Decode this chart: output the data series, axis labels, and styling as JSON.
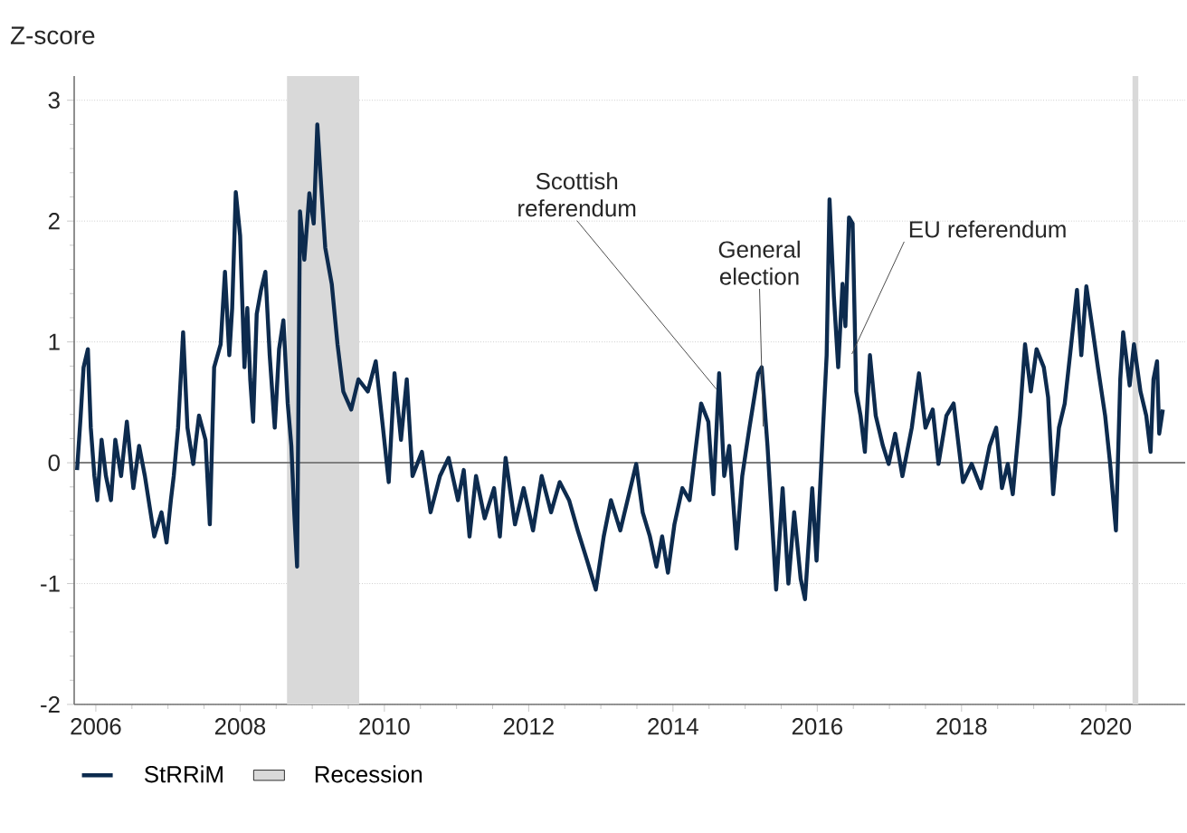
{
  "chart_data": {
    "type": "line",
    "ylabel": "Z-score",
    "x": [
      2005.74,
      2005.79,
      2005.83,
      2005.89,
      2005.93,
      2005.98,
      2006.02,
      2006.08,
      2006.14,
      2006.21,
      2006.27,
      2006.35,
      2006.43,
      2006.52,
      2006.6,
      2006.68,
      2006.81,
      2006.91,
      2006.98,
      2007.04,
      2007.08,
      2007.14,
      2007.21,
      2007.27,
      2007.35,
      2007.43,
      2007.52,
      2007.58,
      2007.64,
      2007.73,
      2007.79,
      2007.85,
      2007.89,
      2007.94,
      2008.0,
      2008.06,
      2008.1,
      2008.14,
      2008.18,
      2008.23,
      2008.29,
      2008.35,
      2008.41,
      2008.48,
      2008.54,
      2008.6,
      2008.66,
      2008.71,
      2008.75,
      2008.79,
      2008.83,
      2008.89,
      2008.96,
      2009.02,
      2009.07,
      2009.13,
      2009.18,
      2009.27,
      2009.35,
      2009.43,
      2009.54,
      2009.64,
      2009.77,
      2009.88,
      2009.98,
      2010.06,
      2010.14,
      2010.23,
      2010.31,
      2010.39,
      2010.52,
      2010.64,
      2010.77,
      2010.89,
      2011.02,
      2011.1,
      2011.18,
      2011.27,
      2011.39,
      2011.52,
      2011.6,
      2011.68,
      2011.81,
      2011.93,
      2012.06,
      2012.18,
      2012.31,
      2012.43,
      2012.56,
      2012.68,
      2012.81,
      2012.93,
      2013.04,
      2013.14,
      2013.27,
      2013.39,
      2013.49,
      2013.58,
      2013.68,
      2013.77,
      2013.85,
      2013.93,
      2014.02,
      2014.13,
      2014.23,
      2014.31,
      2014.39,
      2014.49,
      2014.56,
      2014.64,
      2014.71,
      2014.78,
      2014.88,
      2014.96,
      2015.06,
      2015.18,
      2015.23,
      2015.31,
      2015.43,
      2015.52,
      2015.6,
      2015.68,
      2015.77,
      2015.83,
      2015.93,
      2015.99,
      2016.08,
      2016.13,
      2016.17,
      2016.23,
      2016.29,
      2016.35,
      2016.39,
      2016.44,
      2016.49,
      2016.54,
      2016.6,
      2016.66,
      2016.73,
      2016.81,
      2016.91,
      2016.99,
      2017.08,
      2017.18,
      2017.31,
      2017.41,
      2017.5,
      2017.6,
      2017.68,
      2017.79,
      2017.89,
      2018.02,
      2018.14,
      2018.27,
      2018.39,
      2018.48,
      2018.56,
      2018.64,
      2018.71,
      2018.81,
      2018.88,
      2018.96,
      2019.04,
      2019.14,
      2019.2,
      2019.27,
      2019.35,
      2019.43,
      2019.52,
      2019.6,
      2019.66,
      2019.73,
      2019.81,
      2019.89,
      2019.99,
      2020.06,
      2020.14,
      2020.2,
      2020.24,
      2020.33,
      2020.39,
      2020.48,
      2020.56,
      2020.62,
      2020.66,
      2020.71,
      2020.74,
      2020.79
    ],
    "series": [
      {
        "name": "StRRiM",
        "color": "#0d2b4e",
        "values": [
          -0.06,
          0.39,
          0.79,
          0.94,
          0.29,
          -0.11,
          -0.31,
          0.19,
          -0.11,
          -0.31,
          0.19,
          -0.11,
          0.34,
          -0.21,
          0.14,
          -0.11,
          -0.61,
          -0.41,
          -0.66,
          -0.31,
          -0.11,
          0.29,
          1.08,
          0.29,
          -0.01,
          0.39,
          0.19,
          -0.51,
          0.79,
          0.98,
          1.58,
          0.89,
          1.28,
          2.24,
          1.88,
          0.79,
          1.28,
          0.69,
          0.34,
          1.23,
          1.43,
          1.58,
          0.89,
          0.29,
          0.94,
          1.18,
          0.49,
          0.14,
          -0.41,
          -0.86,
          2.08,
          1.68,
          2.23,
          1.98,
          2.8,
          2.23,
          1.78,
          1.48,
          0.98,
          0.59,
          0.44,
          0.69,
          0.59,
          0.84,
          0.29,
          -0.16,
          0.74,
          0.19,
          0.69,
          -0.11,
          0.09,
          -0.41,
          -0.11,
          0.04,
          -0.31,
          -0.06,
          -0.61,
          -0.11,
          -0.46,
          -0.21,
          -0.61,
          0.04,
          -0.51,
          -0.21,
          -0.56,
          -0.11,
          -0.41,
          -0.16,
          -0.31,
          -0.56,
          -0.81,
          -1.05,
          -0.61,
          -0.31,
          -0.56,
          -0.26,
          -0.01,
          -0.41,
          -0.61,
          -0.86,
          -0.61,
          -0.91,
          -0.51,
          -0.21,
          -0.31,
          0.09,
          0.49,
          0.34,
          -0.26,
          0.74,
          -0.11,
          0.14,
          -0.71,
          -0.11,
          0.29,
          0.74,
          0.79,
          0.14,
          -1.05,
          -0.21,
          -1.0,
          -0.41,
          -0.96,
          -1.13,
          -0.21,
          -0.81,
          0.29,
          0.89,
          2.18,
          1.38,
          0.79,
          1.48,
          1.13,
          2.03,
          1.98,
          0.59,
          0.39,
          0.09,
          0.89,
          0.39,
          0.14,
          -0.01,
          0.24,
          -0.11,
          0.29,
          0.74,
          0.29,
          0.44,
          -0.01,
          0.39,
          0.49,
          -0.16,
          -0.01,
          -0.21,
          0.14,
          0.29,
          -0.21,
          -0.01,
          -0.26,
          0.39,
          0.98,
          0.59,
          0.94,
          0.79,
          0.54,
          -0.26,
          0.29,
          0.49,
          0.98,
          1.43,
          0.89,
          1.46,
          1.13,
          0.79,
          0.39,
          -0.01,
          -0.56,
          0.69,
          1.08,
          0.64,
          0.98,
          0.59,
          0.39,
          0.09,
          0.69,
          0.84,
          0.24,
          0.44
        ]
      }
    ],
    "xlim": [
      2005.7,
      2021.1
    ],
    "ylim": [
      -2,
      3.2
    ],
    "xticks": [
      2006,
      2008,
      2010,
      2012,
      2014,
      2016,
      2018,
      2020
    ],
    "yticks": [
      -2,
      -1,
      0,
      1,
      2,
      3
    ],
    "grid": "y",
    "legend": "bottom",
    "marker": "none",
    "line_style": "solid",
    "ref_lines": [
      {
        "axis": "y",
        "value": 0,
        "color": "#7f7f7f"
      }
    ],
    "bands": [
      {
        "axis": "x",
        "from": 2008.65,
        "to": 2009.65,
        "label": "Recession",
        "color": "#d9d9d9"
      },
      {
        "axis": "x",
        "from": 2020.37,
        "to": 2020.45,
        "color": "#d9d9d9"
      }
    ],
    "annotations": [
      {
        "text": "Scottish referendum",
        "x": 2014.6,
        "y": 0.61
      },
      {
        "text": "General election",
        "x": 2015.25,
        "y": 0.3
      },
      {
        "text": "EU referendum",
        "x": 2016.48,
        "y": 0.9
      }
    ]
  }
}
